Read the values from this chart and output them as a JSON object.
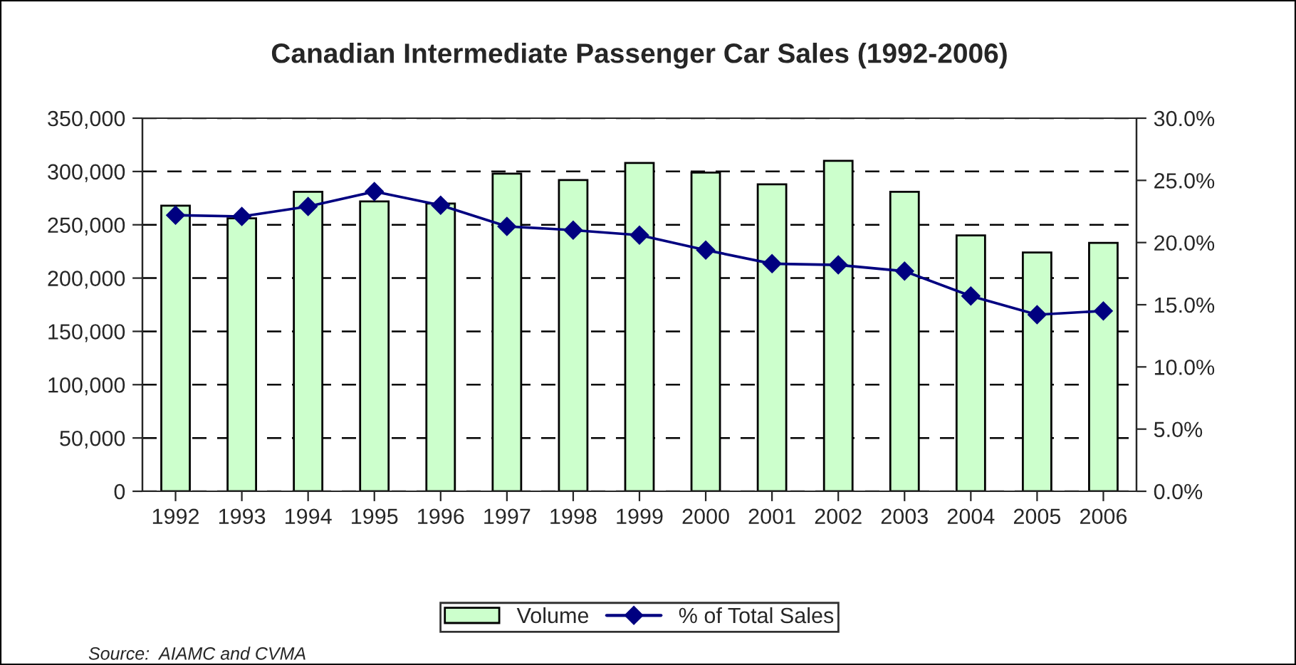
{
  "chart_data": {
    "type": "bar",
    "title": "Canadian Intermediate Passenger Car Sales (1992-2006)",
    "categories": [
      "1992",
      "1993",
      "1994",
      "1995",
      "1996",
      "1997",
      "1998",
      "1999",
      "2000",
      "2001",
      "2002",
      "2003",
      "2004",
      "2005",
      "2006"
    ],
    "series": [
      {
        "name": "Volume",
        "color": "#ccffcc",
        "values": [
          268000,
          256000,
          281000,
          272000,
          270000,
          298000,
          292000,
          308000,
          299000,
          288000,
          310000,
          281000,
          240000,
          224000,
          233000
        ]
      },
      {
        "name": "% of Total Sales",
        "type": "line",
        "axis": "y2",
        "color": "#000080",
        "marker": "diamond",
        "values": [
          22.2,
          22.1,
          22.9,
          24.1,
          23.0,
          21.3,
          21.0,
          20.6,
          19.4,
          18.3,
          18.2,
          17.7,
          15.7,
          14.2,
          14.5
        ]
      }
    ],
    "ylim": [
      0,
      350000
    ],
    "yticks": [
      {
        "value": 0,
        "label": "0"
      },
      {
        "value": 50000,
        "label": "50,000"
      },
      {
        "value": 100000,
        "label": "100,000"
      },
      {
        "value": 150000,
        "label": "150,000"
      },
      {
        "value": 200000,
        "label": "200,000"
      },
      {
        "value": 250000,
        "label": "250,000"
      },
      {
        "value": 300000,
        "label": "300,000"
      },
      {
        "value": 350000,
        "label": "350,000"
      }
    ],
    "y2lim": [
      0,
      30
    ],
    "y2ticks": [
      {
        "value": 0,
        "label": "0.0%"
      },
      {
        "value": 5,
        "label": "5.0%"
      },
      {
        "value": 10,
        "label": "10.0%"
      },
      {
        "value": 15,
        "label": "15.0%"
      },
      {
        "value": 20,
        "label": "20.0%"
      },
      {
        "value": 25,
        "label": "25.0%"
      },
      {
        "value": 30,
        "label": "30.0%"
      }
    ],
    "grid": "y",
    "legend": "bottom",
    "annotations": [
      "Source:  AIAMC and CVMA"
    ]
  }
}
